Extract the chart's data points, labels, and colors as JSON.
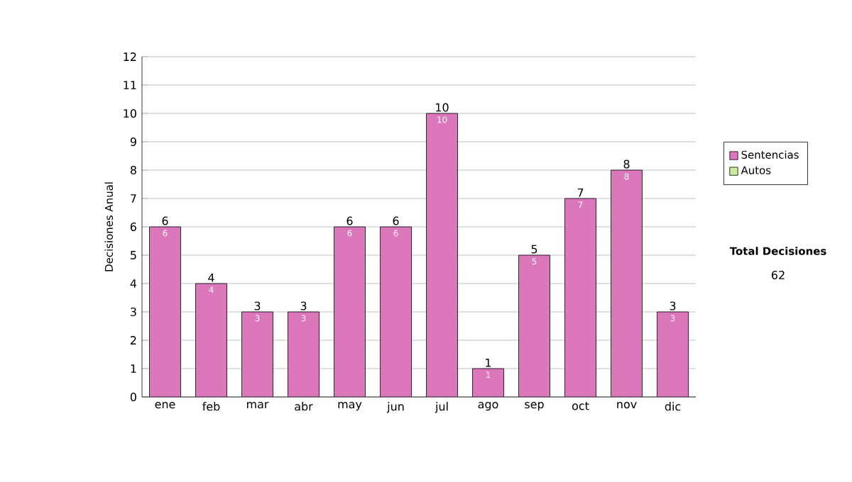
{
  "chart_data": {
    "type": "bar",
    "stacked": true,
    "ylabel": "Decisiones Anual",
    "categories": [
      "ene",
      "feb",
      "mar",
      "abr",
      "may",
      "jun",
      "jul",
      "ago",
      "sep",
      "oct",
      "nov",
      "dic"
    ],
    "series": [
      {
        "name": "Sentencias",
        "color": "#dd77bb",
        "values": [
          6,
          4,
          3,
          3,
          6,
          6,
          10,
          1,
          5,
          7,
          8,
          3
        ],
        "value_labels": [
          "6",
          "4",
          "3",
          "3",
          "6",
          "6",
          "10",
          "1",
          "5",
          "7",
          "8",
          "3"
        ]
      },
      {
        "name": "Autos",
        "color": "#ccee99",
        "values": [
          0,
          0,
          0,
          0,
          0,
          0,
          0,
          0,
          0,
          0,
          0,
          0
        ]
      }
    ],
    "totals": [
      "6",
      "4",
      "3",
      "3",
      "6",
      "6",
      "10",
      "1",
      "5",
      "7",
      "8",
      "3"
    ],
    "ylim": [
      0,
      12
    ],
    "yticks": [
      0,
      1,
      2,
      3,
      4,
      5,
      6,
      7,
      8,
      9,
      10,
      11,
      12
    ],
    "grid": "y",
    "legend": "right",
    "annotations": [
      "Total Decisiones",
      "62"
    ]
  }
}
